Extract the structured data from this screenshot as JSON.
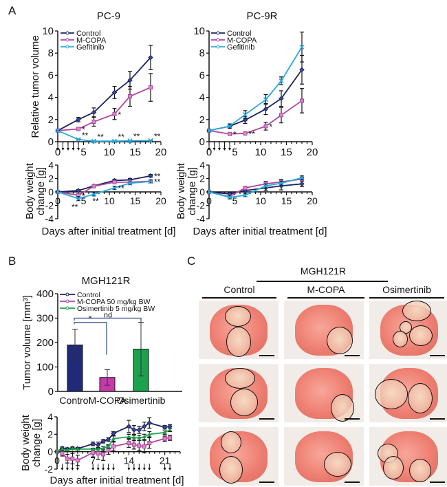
{
  "panels": {
    "a": "A",
    "b": "B",
    "c": "C"
  },
  "colors": {
    "control": "#1a2160",
    "mcopa": "#b0449e",
    "gefitinib": "#29a8dc",
    "osimertinib": "#1aa04a",
    "bar_control": "#1f2a78",
    "bar_mcopa": "#c43aa8",
    "bar_osimertinib": "#1ca24c",
    "bracket": "#2d4a8a"
  },
  "chart_data": [
    {
      "id": "pc9-tumor",
      "type": "line",
      "title": "PC-9",
      "xlabel": "",
      "ylabel": "Relative tumor volume",
      "xlim": [
        0,
        20
      ],
      "ylim": [
        0,
        10
      ],
      "xticks": [
        0,
        5,
        10,
        15,
        20
      ],
      "yticks": [
        0,
        2,
        4,
        6,
        8,
        10
      ],
      "treatment_days": [
        0,
        1,
        2,
        3,
        4
      ],
      "legend": [
        "Control",
        "M-COPA",
        "Gefitinib"
      ],
      "legend_position": "top-left",
      "x": [
        0,
        4,
        7,
        11,
        14,
        18
      ],
      "series": [
        {
          "name": "Control",
          "values": [
            1.0,
            2.0,
            2.65,
            4.45,
            5.55,
            7.6
          ],
          "err": [
            0.05,
            0.2,
            0.4,
            0.55,
            0.8,
            1.1
          ]
        },
        {
          "name": "M-COPA",
          "values": [
            1.0,
            1.15,
            1.8,
            2.5,
            4.1,
            4.9
          ],
          "err": [
            0.05,
            0.15,
            0.4,
            0.5,
            0.9,
            1.25
          ]
        },
        {
          "name": "Gefitinib",
          "values": [
            1.0,
            0.2,
            0.05,
            0.05,
            0.08,
            0.1
          ],
          "err": [
            0.05,
            0.05,
            0.03,
            0.03,
            0.03,
            0.05
          ]
        }
      ],
      "annotations": [
        {
          "series": "M-COPA",
          "x": 4,
          "text": "*"
        },
        {
          "series": "M-COPA",
          "x": 11,
          "text": "*"
        },
        {
          "series": "Gefitinib",
          "x": 4,
          "text": "**"
        },
        {
          "series": "Gefitinib",
          "x": 7,
          "text": "**"
        },
        {
          "series": "Gefitinib",
          "x": 11,
          "text": "**"
        },
        {
          "series": "Gefitinib",
          "x": 14,
          "text": "**"
        },
        {
          "series": "Gefitinib",
          "x": 18,
          "text": "**"
        }
      ]
    },
    {
      "id": "pc9r-tumor",
      "type": "line",
      "title": "PC-9R",
      "xlabel": "",
      "ylabel": "",
      "xlim": [
        0,
        20
      ],
      "ylim": [
        0,
        10
      ],
      "xticks": [
        0,
        5,
        10,
        15,
        20
      ],
      "yticks": [
        0,
        2,
        4,
        6,
        8,
        10
      ],
      "treatment_days": [
        0,
        1,
        2,
        3,
        4
      ],
      "legend": [
        "Control",
        "M-COPA",
        "Gefitinib"
      ],
      "legend_position": "top-left",
      "x": [
        0,
        4,
        7,
        11,
        14,
        18
      ],
      "series": [
        {
          "name": "Control",
          "values": [
            1.0,
            1.4,
            1.95,
            2.95,
            3.9,
            6.5
          ],
          "err": [
            0.05,
            0.2,
            0.3,
            0.5,
            0.7,
            1.3
          ]
        },
        {
          "name": "M-COPA",
          "values": [
            1.0,
            0.7,
            0.75,
            1.4,
            2.4,
            3.7
          ],
          "err": [
            0.05,
            0.08,
            0.15,
            0.35,
            0.7,
            1.1
          ]
        },
        {
          "name": "Gefitinib",
          "values": [
            1.0,
            1.4,
            2.45,
            3.8,
            5.5,
            8.55
          ],
          "err": [
            0.05,
            0.2,
            0.35,
            0.45,
            0.35,
            1.35
          ]
        }
      ],
      "annotations": [
        {
          "series": "M-COPA",
          "x": 4,
          "text": "*"
        },
        {
          "series": "M-COPA",
          "x": 7,
          "text": "**"
        },
        {
          "series": "M-COPA",
          "x": 11,
          "text": "*"
        }
      ]
    },
    {
      "id": "pc9-weight",
      "type": "line",
      "title": "",
      "xlabel": "Days after initial treatment [d]",
      "ylabel": "Body weight change [g]",
      "xlim": [
        0,
        20
      ],
      "ylim": [
        -4,
        4
      ],
      "xticks": [
        0,
        5,
        10,
        15,
        20
      ],
      "yticks": [
        -4,
        -2,
        0,
        2,
        4
      ],
      "x": [
        0,
        4,
        7,
        11,
        14,
        18
      ],
      "series": [
        {
          "name": "Control",
          "values": [
            0,
            0.2,
            0.9,
            1.7,
            1.8,
            2.4
          ],
          "err": [
            0.05,
            0.15,
            0.15,
            0.2,
            0.2,
            0.2
          ]
        },
        {
          "name": "M-COPA",
          "values": [
            0,
            -0.5,
            0.85,
            1.45,
            1.45,
            1.6
          ],
          "err": [
            0.05,
            0.2,
            0.15,
            0.2,
            0.2,
            0.2
          ]
        },
        {
          "name": "Gefitinib",
          "values": [
            0,
            -1.0,
            -0.35,
            0.6,
            1.3,
            1.55
          ],
          "err": [
            0.05,
            0.3,
            0.25,
            0.25,
            0.2,
            0.2
          ]
        }
      ],
      "annotations": [
        {
          "series": "M-COPA",
          "x": 4,
          "text": "*"
        },
        {
          "series": "Gefitinib",
          "x": 4,
          "text": "**"
        },
        {
          "series": "Gefitinib",
          "x": 7,
          "text": "**"
        },
        {
          "series": "Gefitinib",
          "x": 11,
          "text": "**"
        },
        {
          "series": "Control",
          "x": 18,
          "text": "**"
        },
        {
          "series": "M-COPA",
          "x": 18,
          "text": "**"
        }
      ]
    },
    {
      "id": "pc9r-weight",
      "type": "line",
      "title": "",
      "xlabel": "Days after initial treatment [d]",
      "ylabel": "Body weight change [g]",
      "xlim": [
        0,
        20
      ],
      "ylim": [
        -4,
        4
      ],
      "xticks": [
        0,
        5,
        10,
        15,
        20
      ],
      "yticks": [
        -4,
        -2,
        0,
        2,
        4
      ],
      "x": [
        0,
        4,
        7,
        11,
        14,
        18
      ],
      "series": [
        {
          "name": "Control",
          "values": [
            0,
            -0.3,
            0.2,
            0.6,
            0.9,
            1.2
          ],
          "err": [
            0.05,
            0.2,
            0.4,
            0.4,
            0.6,
            0.4
          ]
        },
        {
          "name": "M-COPA",
          "values": [
            0,
            -0.7,
            0.6,
            1.2,
            1.5,
            1.9
          ],
          "err": [
            0.05,
            0.25,
            0.25,
            0.35,
            0.35,
            0.3
          ]
        },
        {
          "name": "Gefitinib",
          "values": [
            0,
            -0.8,
            -0.5,
            0.9,
            1.3,
            2.1
          ],
          "err": [
            0.05,
            0.25,
            0.2,
            0.3,
            0.3,
            0.3
          ]
        }
      ],
      "annotations": []
    },
    {
      "id": "mgh121r-bar",
      "type": "bar",
      "title": "MGH121R",
      "xlabel": "",
      "ylabel": "Tumor volume [mm³]",
      "ylim": [
        0,
        400
      ],
      "yticks": [
        0,
        100,
        200,
        300,
        400
      ],
      "categories": [
        "Control",
        "M-COPA",
        "Osimertinib"
      ],
      "values": [
        190,
        57,
        173
      ],
      "err": [
        65,
        32,
        110
      ],
      "legend": [
        "Control",
        "M-COPA 50 mg/kg BW",
        "Osimertinib 5 mg/kg BW"
      ],
      "legend_position": "top-left",
      "comparisons": [
        {
          "from": "Control",
          "to": "M-COPA",
          "text": "*"
        },
        {
          "from": "Control",
          "to": "Osimertinib",
          "text": "nd"
        }
      ]
    },
    {
      "id": "mgh121r-weight",
      "type": "line",
      "title": "",
      "xlabel": "Days after initial treatment [d]",
      "ylabel": "Body weight change [g]",
      "xlim": [
        0,
        24
      ],
      "ylim": [
        -2,
        4
      ],
      "xticks": [
        0,
        7,
        14,
        21
      ],
      "yticks": [
        -2,
        0,
        2,
        4
      ],
      "treatment_days": [
        1,
        2,
        3,
        4,
        7,
        8,
        9,
        10,
        11,
        14,
        15,
        16,
        17,
        18,
        21,
        22
      ],
      "x": [
        0,
        1,
        2,
        3,
        4,
        7,
        8,
        9,
        10,
        11,
        14,
        15,
        16,
        17,
        18,
        21,
        22
      ],
      "series": [
        {
          "name": "Control",
          "values": [
            0,
            0.4,
            0.3,
            0.4,
            0.35,
            0.9,
            0.8,
            1.2,
            1.4,
            2.1,
            2.9,
            2.5,
            2.5,
            2.9,
            3.3,
            2.8,
            2.9
          ],
          "err": [
            0.05,
            0.15,
            0.15,
            0.15,
            0.15,
            0.2,
            0.3,
            0.2,
            0.2,
            0.2,
            0.7,
            0.5,
            0.4,
            0.5,
            0.6,
            0.2,
            0.2
          ]
        },
        {
          "name": "M-COPA",
          "values": [
            0,
            -0.2,
            -0.8,
            -0.8,
            -1.0,
            -0.1,
            -0.2,
            -0.3,
            0.2,
            0.6,
            1.0,
            0.8,
            0.7,
            0.6,
            1.0,
            1.5,
            1.6
          ],
          "err": [
            0.05,
            0.3,
            0.5,
            0.6,
            0.6,
            0.5,
            0.7,
            0.7,
            0.5,
            0.5,
            0.5,
            0.5,
            0.6,
            0.7,
            0.6,
            0.3,
            0.3
          ]
        },
        {
          "name": "Osimertinib",
          "values": [
            0,
            0.3,
            0.2,
            0.35,
            0.3,
            0.3,
            0.3,
            0.4,
            0.6,
            1.5,
            1.7,
            1.6,
            1.6,
            1.7,
            2.0,
            2.2,
            2.5
          ],
          "err": [
            0.05,
            0.1,
            0.1,
            0.1,
            0.1,
            0.1,
            0.1,
            0.2,
            0.2,
            0.3,
            0.3,
            0.3,
            0.3,
            0.3,
            0.3,
            0.2,
            0.2
          ]
        }
      ]
    }
  ],
  "panel_c": {
    "group_label": "MGH121R",
    "columns": [
      "Control",
      "M-COPA",
      "Osimertinib"
    ],
    "rows": 3,
    "image_description": "Excised mouse lungs with circled tumor nodules; scale bar in each image"
  }
}
